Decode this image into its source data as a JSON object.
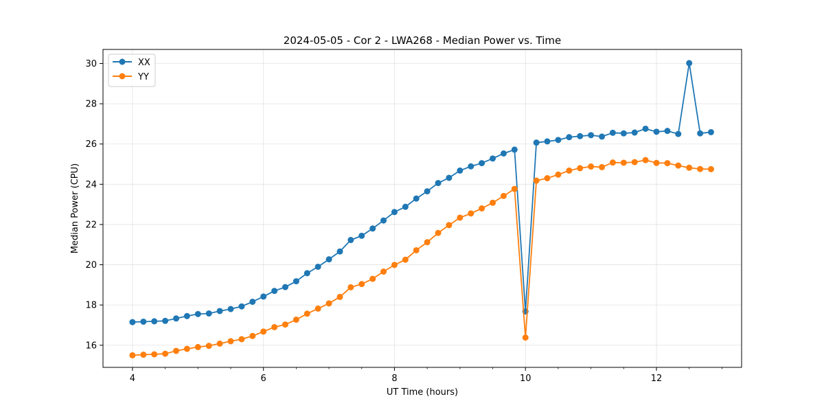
{
  "chart_data": {
    "type": "line",
    "title": "2024-05-05 - Cor 2 - LWA268 - Median Power vs. Time",
    "xlabel": "UT Time (hours)",
    "ylabel": "Median Power (CPU)",
    "xlim": [
      3.55,
      13.3
    ],
    "ylim": [
      14.9,
      30.7
    ],
    "xticks": [
      4,
      6,
      8,
      10,
      12
    ],
    "yticks": [
      16,
      18,
      20,
      22,
      24,
      26,
      28,
      30
    ],
    "grid": true,
    "legend_position": "top-left",
    "x": [
      4.0,
      4.167,
      4.333,
      4.5,
      4.667,
      4.833,
      5.0,
      5.167,
      5.333,
      5.5,
      5.667,
      5.833,
      6.0,
      6.167,
      6.333,
      6.5,
      6.667,
      6.833,
      7.0,
      7.167,
      7.333,
      7.5,
      7.667,
      7.833,
      8.0,
      8.167,
      8.333,
      8.5,
      8.667,
      8.833,
      9.0,
      9.167,
      9.333,
      9.5,
      9.667,
      9.833,
      10.0,
      10.167,
      10.333,
      10.5,
      10.667,
      10.833,
      11.0,
      11.167,
      11.333,
      11.5,
      11.667,
      11.833,
      12.0,
      12.167,
      12.333,
      12.5,
      12.667,
      12.833
    ],
    "series": [
      {
        "name": "XX",
        "color": "#1f77b4",
        "values": [
          17.15,
          17.17,
          17.19,
          17.21,
          17.33,
          17.45,
          17.55,
          17.58,
          17.7,
          17.8,
          17.93,
          18.16,
          18.42,
          18.7,
          18.89,
          19.18,
          19.58,
          19.9,
          20.27,
          20.66,
          21.23,
          21.44,
          21.8,
          22.2,
          22.62,
          22.88,
          23.29,
          23.65,
          24.06,
          24.32,
          24.68,
          24.89,
          25.05,
          25.28,
          25.53,
          25.72,
          17.68,
          26.07,
          26.13,
          26.2,
          26.34,
          26.39,
          26.44,
          26.37,
          26.56,
          26.53,
          26.57,
          26.76,
          26.61,
          26.65,
          26.5,
          30.02,
          26.53,
          26.59
        ]
      },
      {
        "name": "YY",
        "color": "#ff7f0e",
        "values": [
          15.5,
          15.53,
          15.55,
          15.58,
          15.72,
          15.82,
          15.91,
          15.97,
          16.08,
          16.2,
          16.3,
          16.46,
          16.68,
          16.9,
          17.03,
          17.27,
          17.57,
          17.82,
          18.08,
          18.4,
          18.88,
          19.04,
          19.3,
          19.66,
          19.99,
          20.25,
          20.72,
          21.12,
          21.58,
          21.97,
          22.34,
          22.55,
          22.8,
          23.08,
          23.42,
          23.77,
          16.38,
          24.18,
          24.3,
          24.48,
          24.68,
          24.8,
          24.88,
          24.85,
          25.08,
          25.07,
          25.1,
          25.2,
          25.06,
          25.05,
          24.93,
          24.82,
          24.76,
          24.75
        ]
      }
    ]
  }
}
